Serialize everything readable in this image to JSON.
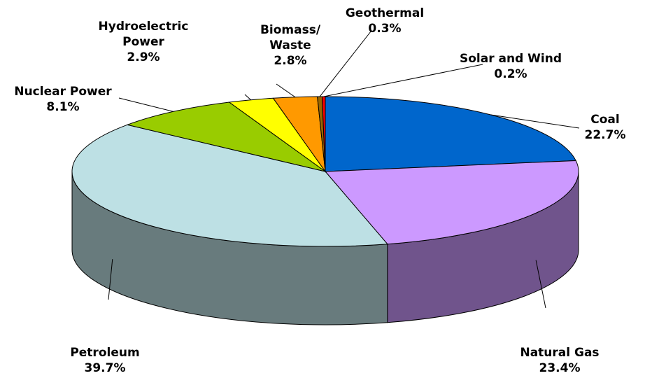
{
  "chart_data": {
    "type": "pie",
    "categories": [
      "Coal",
      "Natural Gas",
      "Petroleum",
      "Nuclear Power",
      "Hydroelectric\nPower",
      "Biomass/\nWaste",
      "Geothermal",
      "Solar and Wind"
    ],
    "values": [
      22.7,
      23.4,
      39.7,
      8.1,
      2.9,
      2.8,
      0.3,
      0.2
    ],
    "value_labels": [
      "22.7%",
      "23.4%",
      "39.7%",
      "8.1%",
      "2.9%",
      "2.8%",
      "0.3%",
      "0.2%"
    ],
    "colors": [
      "#0066cc",
      "#cc99ff",
      "#bde0e4",
      "#99cc00",
      "#ffff00",
      "#ff9900",
      "#996600",
      "#ff0000"
    ]
  }
}
